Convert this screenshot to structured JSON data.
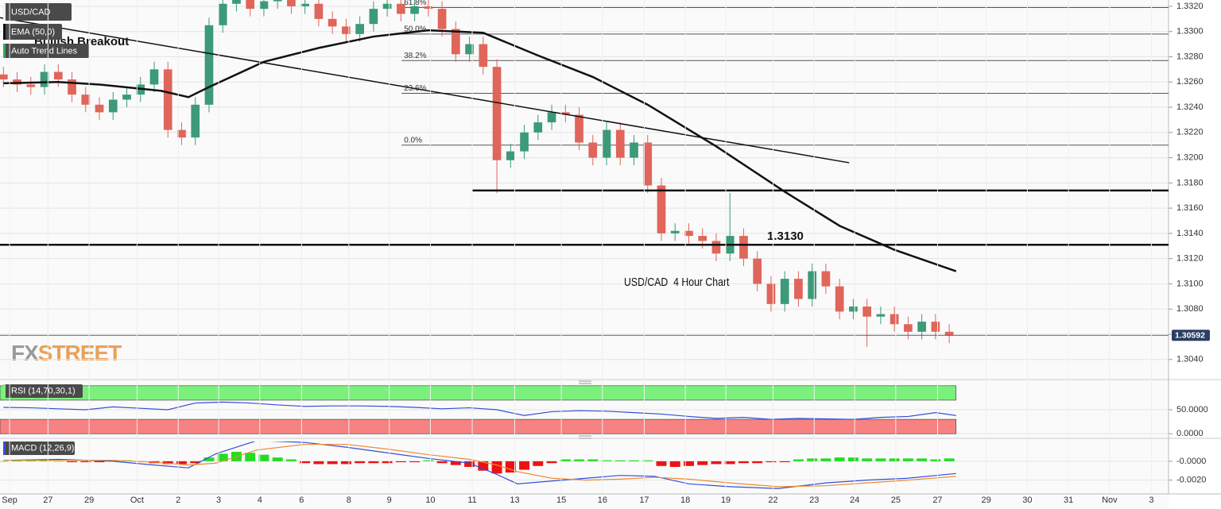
{
  "chart_data": [
    {
      "type": "candlestick",
      "series": [
        {
          "name": "USD/CAD",
          "up_color": "#3c9a78",
          "down_color": "#e0655a",
          "x": [
            0,
            2,
            4,
            6,
            8,
            10,
            12,
            14,
            16,
            18,
            20,
            22,
            24,
            26,
            28,
            30,
            32,
            34,
            36,
            38,
            40,
            42,
            44,
            46,
            48,
            50,
            52,
            54,
            56,
            58,
            60,
            62,
            64,
            66,
            68,
            70,
            72,
            74,
            76,
            78,
            80,
            82,
            84,
            86,
            88,
            90,
            92,
            94,
            96,
            98,
            100,
            102,
            104,
            106,
            108,
            110,
            112,
            114,
            116,
            118,
            120,
            122,
            124,
            126,
            128,
            130,
            132,
            134,
            136,
            138
          ],
          "open": [
            1.3266,
            1.3262,
            1.3258,
            1.3256,
            1.3268,
            1.3262,
            1.325,
            1.3242,
            1.3236,
            1.3246,
            1.325,
            1.3258,
            1.327,
            1.3222,
            1.3216,
            1.3242,
            1.3305,
            1.3322,
            1.3326,
            1.3318,
            1.3324,
            1.3328,
            1.332,
            1.3322,
            1.331,
            1.3304,
            1.3298,
            1.3306,
            1.3318,
            1.3322,
            1.3314,
            1.332,
            1.3318,
            1.3302,
            1.3282,
            1.329,
            1.3272,
            1.3198,
            1.3205,
            1.322,
            1.3228,
            1.3236,
            1.3234,
            1.3212,
            1.32,
            1.3222,
            1.32,
            1.3212,
            1.3178,
            1.314,
            1.3142,
            1.3138,
            1.3134,
            1.3124,
            1.3138,
            1.312,
            1.31,
            1.3084,
            1.3104,
            1.3088,
            1.311,
            1.3098,
            1.3078,
            1.3082,
            1.3074,
            1.3076,
            1.3068,
            1.3062,
            1.307,
            1.3062
          ],
          "high": [
            1.3272,
            1.3268,
            1.3264,
            1.3274,
            1.3274,
            1.3268,
            1.3256,
            1.3248,
            1.3252,
            1.3256,
            1.3264,
            1.3276,
            1.3276,
            1.3228,
            1.3248,
            1.3311,
            1.3328,
            1.3332,
            1.3332,
            1.333,
            1.3334,
            1.3334,
            1.3328,
            1.3328,
            1.3316,
            1.331,
            1.3312,
            1.3324,
            1.3328,
            1.3328,
            1.3326,
            1.3326,
            1.3324,
            1.3308,
            1.3296,
            1.3296,
            1.3278,
            1.3211,
            1.3226,
            1.3234,
            1.3242,
            1.3242,
            1.324,
            1.3218,
            1.3228,
            1.3228,
            1.3218,
            1.3218,
            1.3184,
            1.3148,
            1.3148,
            1.3144,
            1.314,
            1.3172,
            1.3144,
            1.3126,
            1.3106,
            1.311,
            1.311,
            1.3116,
            1.3116,
            1.3104,
            1.3088,
            1.3088,
            1.3082,
            1.3082,
            1.3074,
            1.3076,
            1.3076,
            1.3068
          ],
          "low": [
            1.3256,
            1.3252,
            1.325,
            1.325,
            1.3256,
            1.3244,
            1.3236,
            1.323,
            1.323,
            1.324,
            1.3244,
            1.3252,
            1.3216,
            1.321,
            1.321,
            1.3236,
            1.3299,
            1.3316,
            1.3312,
            1.3312,
            1.3318,
            1.3314,
            1.3314,
            1.3304,
            1.3298,
            1.3292,
            1.3292,
            1.33,
            1.3312,
            1.3308,
            1.3308,
            1.3312,
            1.3296,
            1.3276,
            1.3276,
            1.3266,
            1.3172,
            1.3192,
            1.3199,
            1.3214,
            1.3222,
            1.3228,
            1.3206,
            1.3194,
            1.3194,
            1.3194,
            1.3194,
            1.3172,
            1.3134,
            1.3134,
            1.3132,
            1.3128,
            1.3118,
            1.3118,
            1.3114,
            1.3094,
            1.3078,
            1.3078,
            1.3082,
            1.3082,
            1.3092,
            1.3072,
            1.3072,
            1.305,
            1.3068,
            1.3062,
            1.3056,
            1.3056,
            1.3056,
            1.3053
          ],
          "close": [
            1.3262,
            1.3258,
            1.3256,
            1.3268,
            1.3262,
            1.325,
            1.3242,
            1.3236,
            1.3246,
            1.325,
            1.3258,
            1.327,
            1.3222,
            1.3216,
            1.3242,
            1.3305,
            1.3322,
            1.3326,
            1.3318,
            1.3324,
            1.3328,
            1.332,
            1.3322,
            1.331,
            1.3304,
            1.3298,
            1.3306,
            1.3318,
            1.3322,
            1.3314,
            1.332,
            1.3318,
            1.3302,
            1.3282,
            1.329,
            1.3272,
            1.3198,
            1.3205,
            1.322,
            1.3228,
            1.3236,
            1.3234,
            1.3212,
            1.32,
            1.3222,
            1.32,
            1.3212,
            1.3178,
            1.314,
            1.3142,
            1.3138,
            1.3134,
            1.3124,
            1.3138,
            1.312,
            1.31,
            1.3084,
            1.3104,
            1.3088,
            1.311,
            1.3098,
            1.3078,
            1.3082,
            1.3074,
            1.3076,
            1.3068,
            1.3062,
            1.307,
            1.3062,
            1.3059
          ]
        }
      ],
      "ema": {
        "name": "EMA (50,0)",
        "color": "#111111",
        "x": [
          0,
          8,
          14,
          23,
          27,
          30,
          38,
          46,
          54,
          62,
          70,
          78,
          86,
          94,
          104,
          114,
          122,
          130,
          139
        ],
        "values": [
          1.3259,
          1.326,
          1.3258,
          1.3253,
          1.3248,
          1.3256,
          1.3276,
          1.3287,
          1.3296,
          1.3301,
          1.3299,
          1.3281,
          1.3264,
          1.3242,
          1.3209,
          1.3173,
          1.3146,
          1.3127,
          1.311
        ]
      },
      "trend_lines": {
        "name": "Auto Trend Lines",
        "color": "#111111",
        "lines": [
          {
            "x": [
              -0.5,
              123.4
            ],
            "values": [
              1.3311,
              1.3196
            ]
          },
          {
            "x": [
              68.4,
              170
            ],
            "values": [
              1.3174,
              1.3174
            ]
          },
          {
            "x": [
              -0.5,
              170
            ],
            "values": [
              1.3131,
              1.3131
            ]
          }
        ]
      },
      "fibonacci": {
        "x_start": 58.1,
        "color": "#555555",
        "levels": [
          {
            "value": 1.3319,
            "label": "61.8%"
          },
          {
            "value": 1.3298,
            "label": "50.0%"
          },
          {
            "value": 1.3277,
            "label": "38.2%"
          },
          {
            "value": 1.3251,
            "label": "23.6%"
          },
          {
            "value": 1.321,
            "label": "0.0%"
          }
        ]
      },
      "last_price": {
        "value": 1.30592,
        "label": "1.30592",
        "color": "#2b3f63"
      },
      "annotations": [
        "Bullish Breakout",
        "USD/CAD  4 Hour Chart",
        "1.3130"
      ],
      "watermark": [
        "FX",
        "STREET"
      ],
      "xlim": [
        -0.5,
        170
      ],
      "xticks": [
        {
          "value": 0.9,
          "label": "Sep"
        },
        {
          "value": 6.5,
          "label": "27"
        },
        {
          "value": 12.5,
          "label": "29"
        },
        {
          "value": 19.5,
          "label": "Oct"
        },
        {
          "value": 25.5,
          "label": "2"
        },
        {
          "value": 31.4,
          "label": "3"
        },
        {
          "value": 37.4,
          "label": "4"
        },
        {
          "value": 43.5,
          "label": "6"
        },
        {
          "value": 50.4,
          "label": "8"
        },
        {
          "value": 56.3,
          "label": "9"
        },
        {
          "value": 62.3,
          "label": "10"
        },
        {
          "value": 68.4,
          "label": "11"
        },
        {
          "value": 74.6,
          "label": "13"
        },
        {
          "value": 81.4,
          "label": "15"
        },
        {
          "value": 87.4,
          "label": "16"
        },
        {
          "value": 93.5,
          "label": "17"
        },
        {
          "value": 99.5,
          "label": "18"
        },
        {
          "value": 105.4,
          "label": "19"
        },
        {
          "value": 112.3,
          "label": "22"
        },
        {
          "value": 118.3,
          "label": "23"
        },
        {
          "value": 124.2,
          "label": "24"
        },
        {
          "value": 130.2,
          "label": "25"
        },
        {
          "value": 136.3,
          "label": "27"
        },
        {
          "value": 143.4,
          "label": "29"
        },
        {
          "value": 149.4,
          "label": "30"
        },
        {
          "value": 155.4,
          "label": "31"
        },
        {
          "value": 161.4,
          "label": "Nov"
        },
        {
          "value": 167.5,
          "label": "3"
        }
      ],
      "ylim": [
        1.3026,
        1.3325
      ],
      "yticks": [
        {
          "value": 1.304,
          "label": "1.3040"
        },
        {
          "value": 1.306,
          "label": "1.3060"
        },
        {
          "value": 1.308,
          "label": "1.3080"
        },
        {
          "value": 1.31,
          "label": "1.3100"
        },
        {
          "value": 1.312,
          "label": "1.3120"
        },
        {
          "value": 1.314,
          "label": "1.3140"
        },
        {
          "value": 1.316,
          "label": "1.3160"
        },
        {
          "value": 1.318,
          "label": "1.3180"
        },
        {
          "value": 1.32,
          "label": "1.3200"
        },
        {
          "value": 1.322,
          "label": "1.3220"
        },
        {
          "value": 1.324,
          "label": "1.3240"
        },
        {
          "value": 1.326,
          "label": "1.3260"
        },
        {
          "value": 1.328,
          "label": "1.3280"
        },
        {
          "value": 1.33,
          "label": "1.3300"
        },
        {
          "value": 1.332,
          "label": "1.3320"
        }
      ],
      "grid": true
    },
    {
      "type": "line",
      "title": "RSI (14,70,30,1)",
      "bands": [
        {
          "from": 70,
          "to": 100,
          "color": "#7cf07c"
        },
        {
          "from": 0,
          "to": 30,
          "color": "#f78282"
        }
      ],
      "series": [
        {
          "color": "#3350d8",
          "x": [
            0,
            4,
            8,
            12,
            16,
            20,
            24,
            28,
            32,
            36,
            40,
            44,
            48,
            52,
            56,
            60,
            64,
            68,
            72,
            76,
            80,
            84,
            88,
            92,
            96,
            100,
            104,
            108,
            112,
            116,
            120,
            124,
            128,
            132,
            136,
            139
          ],
          "values": [
            55,
            54,
            52,
            50,
            56,
            53,
            50,
            64,
            66,
            64,
            60,
            57,
            58,
            58,
            57,
            55,
            52,
            54,
            50,
            38,
            46,
            48,
            47,
            44,
            41,
            36,
            32,
            34,
            30,
            32,
            31,
            30,
            34,
            36,
            44,
            38
          ]
        }
      ],
      "ylim": [
        -3,
        103
      ],
      "yticks": [
        {
          "value": 50,
          "label": "50.0000"
        },
        {
          "value": 0,
          "label": "0.0000"
        }
      ]
    },
    {
      "type": "line",
      "title": "MACD (12,26,9)",
      "series": [
        {
          "color": "#3350d8",
          "x": [
            0,
            8,
            16,
            22,
            27,
            31,
            37,
            44,
            50,
            56,
            62,
            68,
            72,
            75,
            80,
            85,
            90,
            95,
            100,
            106,
            113,
            120,
            126,
            132,
            139
          ],
          "values": [
            0.0001,
            0.0002,
            0.0,
            -0.0004,
            -0.0007,
            0.0008,
            0.0022,
            0.002,
            0.0015,
            0.0009,
            0.0003,
            -0.0002,
            -0.0014,
            -0.0024,
            -0.0021,
            -0.0018,
            -0.0015,
            -0.0016,
            -0.0024,
            -0.0027,
            -0.0029,
            -0.0023,
            -0.002,
            -0.0018,
            -0.0013
          ]
        },
        {
          "color": "#f08a30",
          "x": [
            0,
            8,
            16,
            22,
            27,
            31,
            37,
            44,
            50,
            56,
            62,
            68,
            72,
            75,
            80,
            85,
            90,
            95,
            100,
            106,
            113,
            120,
            126,
            132,
            139
          ],
          "values": [
            0.0001,
            0.0001,
            0.0001,
            -0.0001,
            -0.0004,
            -0.0002,
            0.0012,
            0.0018,
            0.0018,
            0.0013,
            0.0007,
            0.0002,
            -0.0004,
            -0.0011,
            -0.0018,
            -0.002,
            -0.0019,
            -0.0017,
            -0.0019,
            -0.0023,
            -0.0027,
            -0.0026,
            -0.0023,
            -0.002,
            -0.0016
          ]
        }
      ],
      "histogram": {
        "up_color": "#22dd22",
        "down_color": "#ee1111",
        "x": [
          0,
          2,
          4,
          6,
          8,
          10,
          12,
          14,
          16,
          18,
          20,
          22,
          24,
          26,
          28,
          30,
          32,
          34,
          36,
          38,
          40,
          42,
          44,
          46,
          48,
          50,
          52,
          54,
          56,
          58,
          60,
          62,
          64,
          66,
          68,
          70,
          72,
          74,
          76,
          78,
          80,
          82,
          84,
          86,
          88,
          90,
          92,
          94,
          96,
          98,
          100,
          102,
          104,
          106,
          108,
          110,
          112,
          114,
          116,
          118,
          120,
          122,
          124,
          126,
          128,
          130,
          132,
          134,
          136,
          138
        ],
        "values": [
          0,
          0.0001,
          0.0001,
          0.0001,
          0,
          -0.0001,
          -0.0001,
          -0.0001,
          0.0001,
          0.0001,
          0,
          -0.0002,
          -0.0003,
          -0.0003,
          -0.0002,
          0.0004,
          0.0008,
          0.001,
          0.0009,
          0.0007,
          0.0004,
          0.0002,
          -0.0002,
          -0.0003,
          -0.0003,
          -0.0003,
          -0.0002,
          -0.0002,
          -0.0002,
          -0.0001,
          -0.0001,
          0.0001,
          -0.0002,
          -0.0004,
          -0.0006,
          -0.001,
          -0.0013,
          -0.0012,
          -0.0009,
          -0.0005,
          -0.0002,
          0.0002,
          0.0002,
          0.0002,
          0.0001,
          0.0001,
          0.0001,
          0.0001,
          -0.0005,
          -0.0006,
          -0.0005,
          -0.0004,
          -0.0003,
          -0.0003,
          -0.0002,
          -0.0002,
          -0.0001,
          -0.0001,
          0.0002,
          0.0003,
          0.0003,
          0.0004,
          0.0004,
          0.0003,
          0.0003,
          0.0003,
          0.0003,
          0.0003,
          0.0002,
          0.0003
        ]
      },
      "ylim": [
        -0.0033,
        0.0021
      ],
      "yticks": [
        {
          "value": 0,
          "label": "-0.0000"
        },
        {
          "value": -0.002,
          "label": "-0.0020"
        }
      ]
    }
  ]
}
